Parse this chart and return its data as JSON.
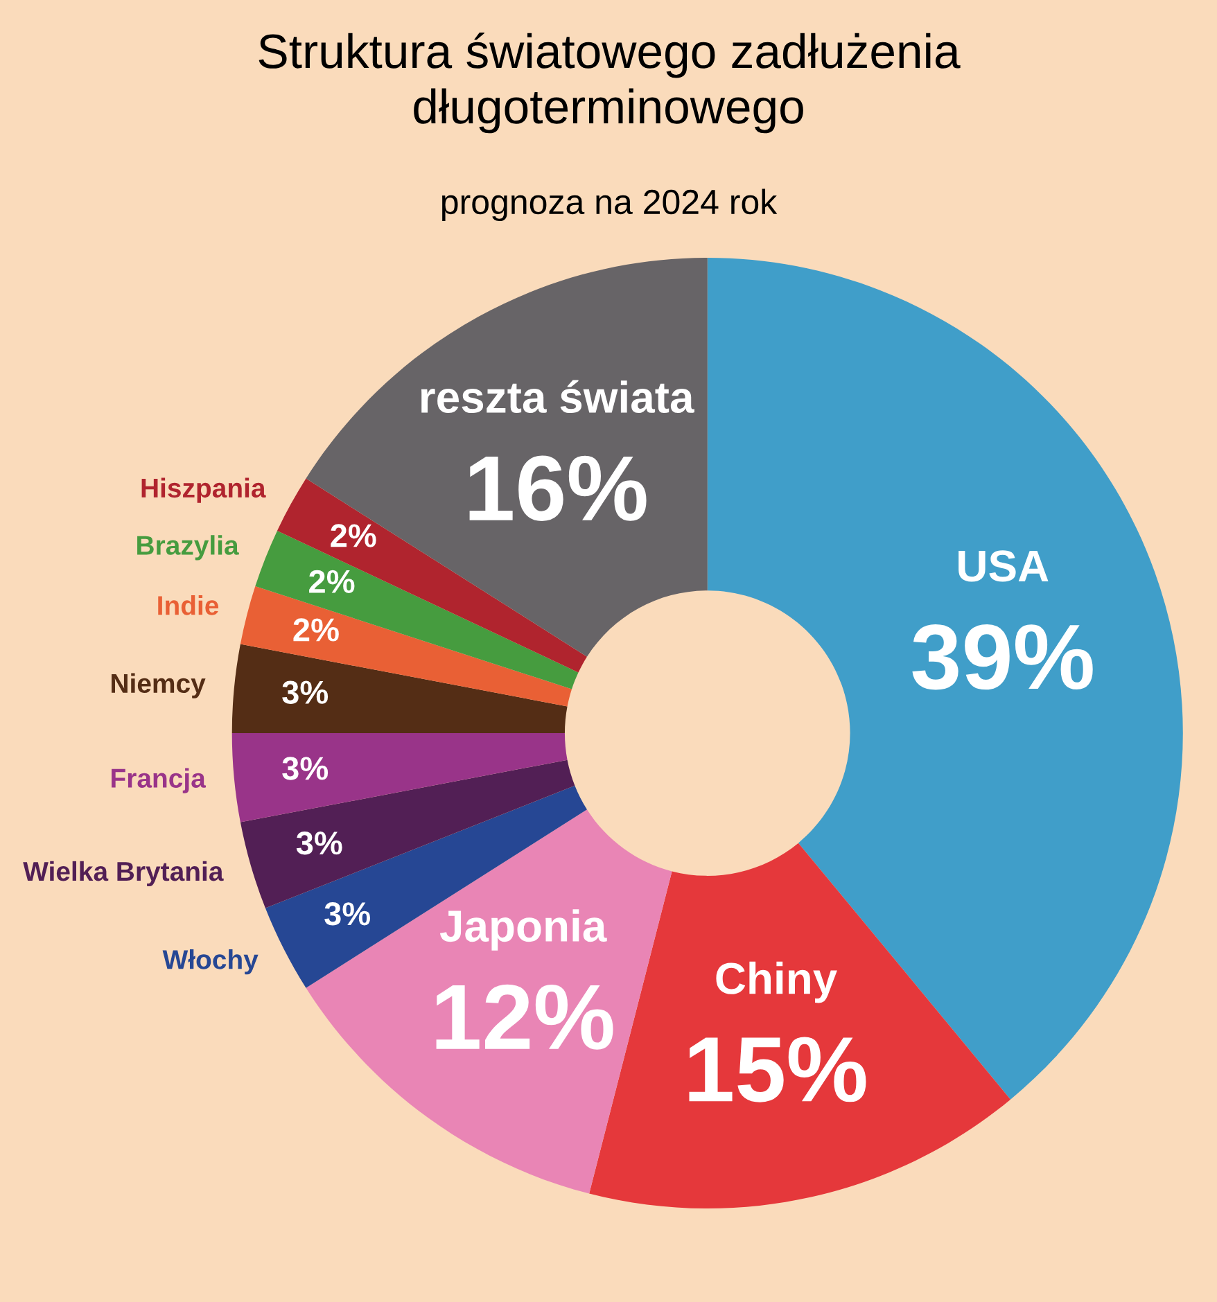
{
  "chart_data": {
    "type": "donut",
    "title": "Struktura światowego zadłużenia\ndługoterminowego",
    "subtitle": "prognoza na 2024 rok",
    "categories": [
      "USA",
      "Chiny",
      "Japonia",
      "Włochy",
      "Wielka Brytania",
      "Francja",
      "Niemcy",
      "Indie",
      "Brazylia",
      "Hiszpania",
      "reszta świata"
    ],
    "values": [
      39,
      15,
      12,
      3,
      3,
      3,
      3,
      2,
      2,
      2,
      16
    ],
    "value_labels": [
      "39%",
      "15%",
      "12%",
      "3%",
      "3%",
      "3%",
      "3%",
      "2%",
      "2%",
      "2%",
      "16%"
    ],
    "colors": [
      "#409ec9",
      "#e5383b",
      "#e985b5",
      "#264794",
      "#521f55",
      "#993489",
      "#542d15",
      "#e96035",
      "#469c3f",
      "#b0242e",
      "#676467"
    ]
  }
}
